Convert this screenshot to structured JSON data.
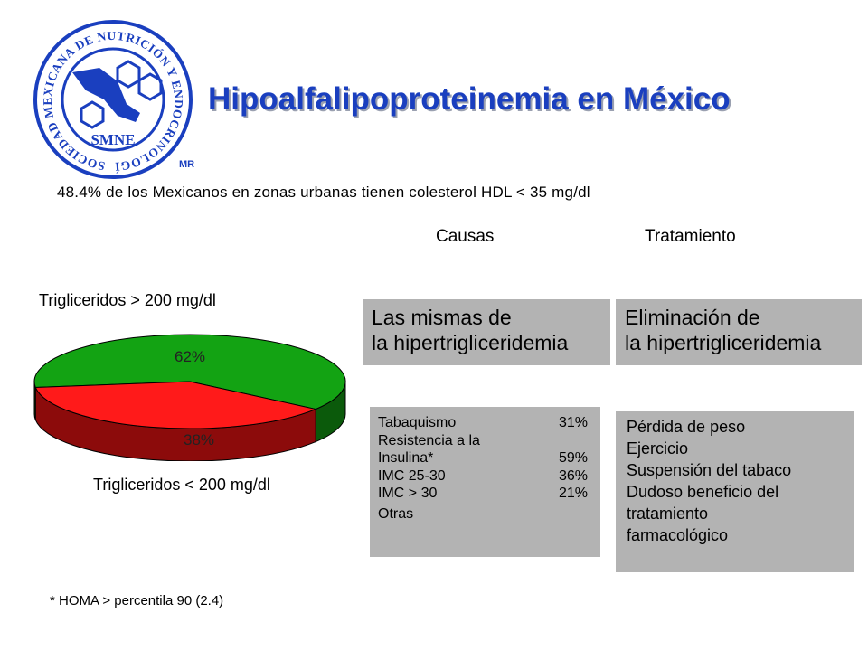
{
  "logo": {
    "ring_text": "SOCIEDAD MEXICANA DE NUTRICIÓN Y ENDOCRINOLOGÍA",
    "abbrev": "SMNE",
    "mark": "MR",
    "color": "#1a3fbf"
  },
  "title": "Hipoalfalipoproteinemia en México",
  "subtitle": "48.4% de los Mexicanos en zonas urbanas tienen colesterol HDL < 35 mg/dl",
  "headers": {
    "causas": "Causas",
    "tratamiento": "Tratamiento"
  },
  "chart_data": {
    "type": "pie",
    "labels": [
      "Trigliceridos > 200 mg/dl",
      "Trigliceridos < 200 mg/dl"
    ],
    "values": [
      62,
      38
    ],
    "value_labels": [
      "62%",
      "38%"
    ],
    "colors": [
      "#13a313",
      "#ff1a1a"
    ],
    "side_colors": [
      "#0b5a0b",
      "#8c0b0b"
    ]
  },
  "causas": {
    "main": [
      "Las mismas de",
      "la hipertrigliceridemia"
    ],
    "list": [
      {
        "label": "Tabaquismo",
        "pct": "31%"
      },
      {
        "label": "Resistencia a la",
        "pct": ""
      },
      {
        "label": "Insulina*",
        "pct": "59%"
      },
      {
        "label": "IMC 25-30",
        "pct": "36%"
      },
      {
        "label": "IMC > 30",
        "pct": "21%"
      },
      {
        "label": "Otras",
        "pct": ""
      }
    ]
  },
  "tratamiento": {
    "main": [
      "Eliminación de",
      "la hipertrigliceridemia"
    ],
    "list": [
      "Pérdida de peso",
      "Ejercicio",
      "Suspensión del tabaco",
      "Dudoso beneficio del",
      "tratamiento",
      "farmacológico"
    ]
  },
  "footnote": "* HOMA > percentila 90 (2.4)"
}
